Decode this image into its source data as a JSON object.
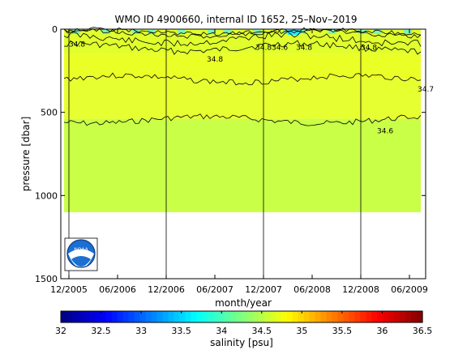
{
  "chart_data": {
    "type": "heatmap",
    "title": "WMO ID 4900660, internal ID 1652, 25–Nov–2019",
    "xlabel": "month/year",
    "ylabel": "pressure [dbar]",
    "colorbar_label": "salinity [psu]",
    "x_range": [
      "2005-11",
      "2009-08"
    ],
    "x_ticks": [
      "12/2005",
      "06/2006",
      "12/2006",
      "06/2007",
      "12/2007",
      "06/2008",
      "12/2008",
      "06/2009"
    ],
    "y_range": [
      0,
      1500
    ],
    "y_reversed": true,
    "y_ticks": [
      0,
      500,
      1000,
      1500
    ],
    "data_max_pressure": 1100,
    "colorbar_range": [
      32,
      36.5
    ],
    "colorbar_ticks": [
      "32",
      "32.5",
      "33",
      "33.5",
      "34",
      "34.5",
      "35",
      "35.5",
      "36",
      "36.5"
    ],
    "colormap": "jet",
    "vertical_gridlines_at": [
      "12/2005",
      "12/2006",
      "12/2007",
      "12/2008"
    ],
    "layers": [
      {
        "pressure_top": 0,
        "pressure_bottom": 150,
        "salinity": 34.9,
        "color": "#e0ff2c"
      },
      {
        "pressure_top": 150,
        "pressure_bottom": 300,
        "salinity": 34.8,
        "color": "#eaff26"
      },
      {
        "pressure_top": 300,
        "pressure_bottom": 540,
        "salinity": 34.7,
        "color": "#e6ff30"
      },
      {
        "pressure_top": 540,
        "pressure_bottom": 1100,
        "salinity": 34.6,
        "color": "#c9ff46"
      }
    ],
    "contour_labels": [
      {
        "text": "34.8",
        "x": "2007-06",
        "y": 180
      },
      {
        "text": "34.8",
        "x": "2007-12",
        "y": 110
      },
      {
        "text": "34.6",
        "x": "2008-02",
        "y": 110
      },
      {
        "text": "34.8",
        "x": "2008-05",
        "y": 110
      },
      {
        "text": "34.8",
        "x": "2009-01",
        "y": 110
      },
      {
        "text": "34.7",
        "x": "2009-08",
        "y": 360
      },
      {
        "text": "34.6",
        "x": "2009-03",
        "y": 610
      },
      {
        "text": "34.8",
        "x": "2006-01",
        "y": 90
      }
    ],
    "logo": "NOAA"
  }
}
